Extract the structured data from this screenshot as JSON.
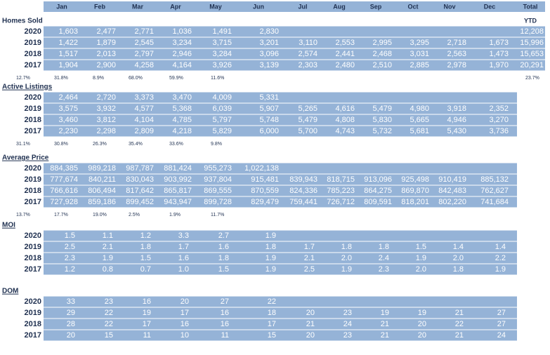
{
  "header": {
    "months": [
      "Jan",
      "Feb",
      "Mar",
      "Apr",
      "May",
      "Jun",
      "Jul",
      "Aug",
      "Sep",
      "Oct",
      "Nov",
      "Dec"
    ],
    "total": "Total"
  },
  "sections": [
    {
      "title": "Homes Sold",
      "total_note": "YTD",
      "rows": [
        {
          "year": "2020",
          "values": [
            "1,603",
            "2,477",
            "2,771",
            "1,036",
            "1,491",
            "2,830"
          ],
          "total": "12,208"
        },
        {
          "year": "2019",
          "values": [
            "1,422",
            "1,879",
            "2,545",
            "3,234",
            "3,715",
            "3,201",
            "3,110",
            "2,553",
            "2,995",
            "3,295",
            "2,718",
            "1,673"
          ],
          "total": "15,996"
        },
        {
          "year": "2018",
          "values": [
            "1,517",
            "2,013",
            "2,797",
            "2,946",
            "3,284",
            "3,096",
            "2,574",
            "2,441",
            "2,468",
            "3,031",
            "2,563",
            "1,473"
          ],
          "total": "15,653"
        },
        {
          "year": "2017",
          "values": [
            "1,904",
            "2,900",
            "4,258",
            "4,164",
            "3,926",
            "3,139",
            "2,303",
            "2,480",
            "2,510",
            "2,885",
            "2,978",
            "1,970"
          ],
          "total": "20,291"
        }
      ],
      "changes": [
        "12.7%",
        "31.8%",
        "8.9%",
        "68.0%",
        "59.9%",
        "11.6%"
      ],
      "change_total": "23.7%"
    },
    {
      "title": "Active Listings",
      "rows": [
        {
          "year": "2020",
          "values": [
            "2,464",
            "2,720",
            "3,373",
            "3,470",
            "4,009",
            "5,331"
          ]
        },
        {
          "year": "2019",
          "values": [
            "3,575",
            "3,932",
            "4,577",
            "5,368",
            "6,039",
            "5,907",
            "5,265",
            "4,616",
            "5,479",
            "4,980",
            "3,918",
            "2,352"
          ]
        },
        {
          "year": "2018",
          "values": [
            "3,460",
            "3,812",
            "4,104",
            "4,785",
            "5,797",
            "5,748",
            "5,479",
            "4,808",
            "5,830",
            "5,665",
            "4,946",
            "3,270"
          ]
        },
        {
          "year": "2017",
          "values": [
            "2,230",
            "2,298",
            "2,809",
            "4,218",
            "5,829",
            "6,000",
            "5,700",
            "4,743",
            "5,732",
            "5,681",
            "5,430",
            "3,736"
          ]
        }
      ],
      "changes": [
        "31.1%",
        "30.8%",
        "26.3%",
        "35.4%",
        "33.6%",
        "9.8%"
      ]
    },
    {
      "title": "Average Price",
      "rows": [
        {
          "year": "2020",
          "values": [
            "884,385",
            "989,218",
            "987,787",
            "881,424",
            "955,273",
            "1,022,138"
          ]
        },
        {
          "year": "2019",
          "values": [
            "777,674",
            "840,211",
            "830,043",
            "903,992",
            "937,804",
            "915,481",
            "839,943",
            "818,715",
            "913,096",
            "925,498",
            "910,419",
            "885,132"
          ]
        },
        {
          "year": "2018",
          "values": [
            "766,616",
            "806,494",
            "817,642",
            "865,817",
            "869,555",
            "870,559",
            "824,336",
            "785,223",
            "864,275",
            "869,870",
            "842,483",
            "762,627"
          ]
        },
        {
          "year": "2017",
          "values": [
            "727,928",
            "859,186",
            "899,452",
            "943,947",
            "899,728",
            "829,479",
            "759,441",
            "726,712",
            "809,591",
            "818,201",
            "802,220",
            "741,684"
          ]
        }
      ],
      "changes": [
        "13.7%",
        "17.7%",
        "19.0%",
        "2.5%",
        "1.9%",
        "11.7%"
      ]
    },
    {
      "title": "MOI",
      "rows": [
        {
          "year": "2020",
          "values": [
            "1.5",
            "1.1",
            "1.2",
            "3.3",
            "2.7",
            "1.9"
          ]
        },
        {
          "year": "2019",
          "values": [
            "2.5",
            "2.1",
            "1.8",
            "1.7",
            "1.6",
            "1.8",
            "1.7",
            "1.8",
            "1.8",
            "1.5",
            "1.4",
            "1.4"
          ]
        },
        {
          "year": "2018",
          "values": [
            "2.3",
            "1.9",
            "1.5",
            "1.6",
            "1.8",
            "1.9",
            "2.1",
            "2.0",
            "2.4",
            "1.9",
            "2.0",
            "2.2"
          ]
        },
        {
          "year": "2017",
          "values": [
            "1.2",
            "0.8",
            "0.7",
            "1.0",
            "1.5",
            "1.9",
            "2.5",
            "1.9",
            "2.3",
            "2.0",
            "1.8",
            "1.9"
          ]
        }
      ]
    },
    {
      "title": "DOM",
      "rows": [
        {
          "year": "2020",
          "values": [
            "33",
            "23",
            "16",
            "20",
            "27",
            "22"
          ]
        },
        {
          "year": "2019",
          "values": [
            "29",
            "22",
            "19",
            "17",
            "16",
            "18",
            "20",
            "23",
            "19",
            "19",
            "21",
            "27"
          ]
        },
        {
          "year": "2018",
          "values": [
            "28",
            "22",
            "17",
            "16",
            "16",
            "17",
            "21",
            "24",
            "21",
            "20",
            "22",
            "27"
          ]
        },
        {
          "year": "2017",
          "values": [
            "20",
            "15",
            "11",
            "10",
            "11",
            "15",
            "20",
            "23",
            "21",
            "20",
            "21",
            "24"
          ]
        }
      ]
    }
  ]
}
